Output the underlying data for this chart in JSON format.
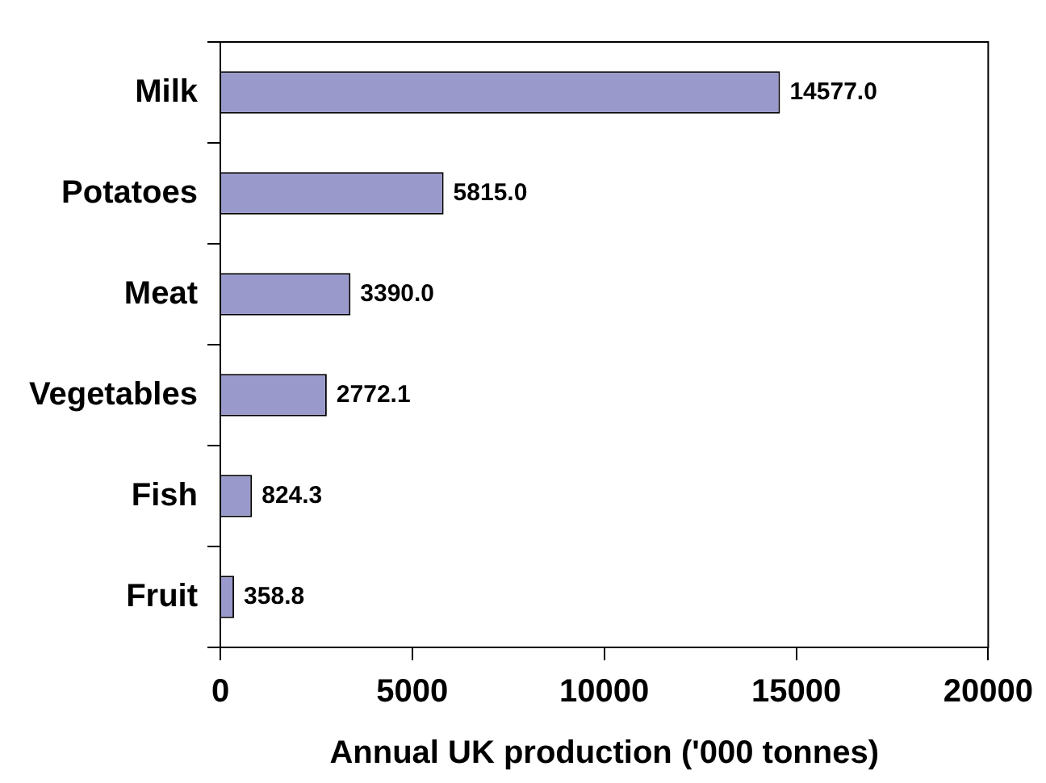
{
  "chart_data": {
    "type": "bar",
    "orientation": "horizontal",
    "xlabel": "Annual UK production ('000 tonnes)",
    "categories": [
      "Milk",
      "Potatoes",
      "Meat",
      "Vegetables",
      "Fish",
      "Fruit"
    ],
    "values": [
      14577.0,
      5815.0,
      3390.0,
      2772.1,
      824.3,
      358.8
    ],
    "value_labels": [
      "14577.0",
      "5815.0",
      "3390.0",
      "2772.1",
      "824.3",
      "358.8"
    ],
    "color": "#9999cc",
    "xlim": [
      0,
      20000
    ],
    "xticks": [
      0,
      5000,
      10000,
      15000,
      20000
    ],
    "grid": false,
    "legend": false
  }
}
